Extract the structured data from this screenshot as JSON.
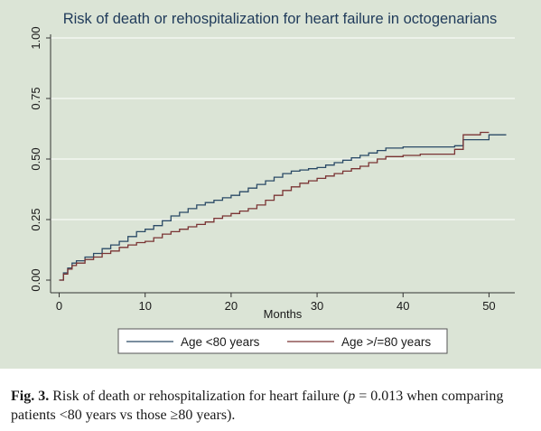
{
  "chart_data": {
    "type": "line",
    "title": "Risk of death or rehospitalization for heart failure in octogenarians",
    "xlabel": "Months",
    "ylabel": "",
    "xlim": [
      -1,
      53
    ],
    "ylim": [
      0,
      1
    ],
    "xticks": [
      0,
      10,
      20,
      30,
      40,
      50
    ],
    "yticks": [
      0,
      0.25,
      0.5,
      0.75,
      1
    ],
    "ytick_labels": [
      "0.00",
      "0.25",
      "0.50",
      "0.75",
      "1.00"
    ],
    "grid": true,
    "legend_position": "bottom",
    "series": [
      {
        "name": "Age <80 years",
        "color": "#2b4a66",
        "x": [
          0,
          0.5,
          1,
          1.5,
          2,
          3,
          4,
          5,
          6,
          7,
          8,
          9,
          10,
          11,
          12,
          13,
          14,
          15,
          16,
          17,
          18,
          19,
          20,
          21,
          22,
          23,
          24,
          25,
          26,
          27,
          28,
          29,
          30,
          31,
          32,
          33,
          34,
          35,
          36,
          37,
          38,
          40,
          42,
          44,
          46,
          47,
          50,
          52
        ],
        "y": [
          0,
          0.03,
          0.05,
          0.07,
          0.08,
          0.095,
          0.11,
          0.13,
          0.145,
          0.16,
          0.18,
          0.2,
          0.21,
          0.225,
          0.245,
          0.265,
          0.28,
          0.295,
          0.31,
          0.32,
          0.33,
          0.34,
          0.35,
          0.365,
          0.38,
          0.395,
          0.41,
          0.425,
          0.44,
          0.45,
          0.455,
          0.46,
          0.465,
          0.475,
          0.485,
          0.495,
          0.505,
          0.515,
          0.525,
          0.535,
          0.545,
          0.55,
          0.55,
          0.55,
          0.555,
          0.58,
          0.6,
          0.6
        ]
      },
      {
        "name": "Age >/=80 years",
        "color": "#7a3434",
        "x": [
          0,
          0.5,
          1,
          1.5,
          2,
          3,
          4,
          5,
          6,
          7,
          8,
          9,
          10,
          11,
          12,
          13,
          14,
          15,
          16,
          17,
          18,
          19,
          20,
          21,
          22,
          23,
          24,
          25,
          26,
          27,
          28,
          29,
          30,
          31,
          32,
          33,
          34,
          35,
          36,
          37,
          38,
          40,
          42,
          44,
          46,
          47,
          49,
          50
        ],
        "y": [
          0,
          0.025,
          0.045,
          0.06,
          0.07,
          0.085,
          0.095,
          0.11,
          0.12,
          0.135,
          0.145,
          0.155,
          0.16,
          0.175,
          0.19,
          0.2,
          0.21,
          0.22,
          0.23,
          0.24,
          0.255,
          0.265,
          0.275,
          0.285,
          0.295,
          0.31,
          0.33,
          0.35,
          0.37,
          0.385,
          0.4,
          0.41,
          0.42,
          0.43,
          0.44,
          0.45,
          0.46,
          0.47,
          0.485,
          0.5,
          0.51,
          0.515,
          0.52,
          0.52,
          0.54,
          0.6,
          0.61,
          0.61
        ]
      }
    ]
  },
  "caption": {
    "label": "Fig. 3.",
    "text_a": " Risk of death or rehospitalization for heart failure (",
    "p_var": "p",
    "text_b": " = 0.013 when comparing patients <80 years vs those ≥80 years)."
  }
}
